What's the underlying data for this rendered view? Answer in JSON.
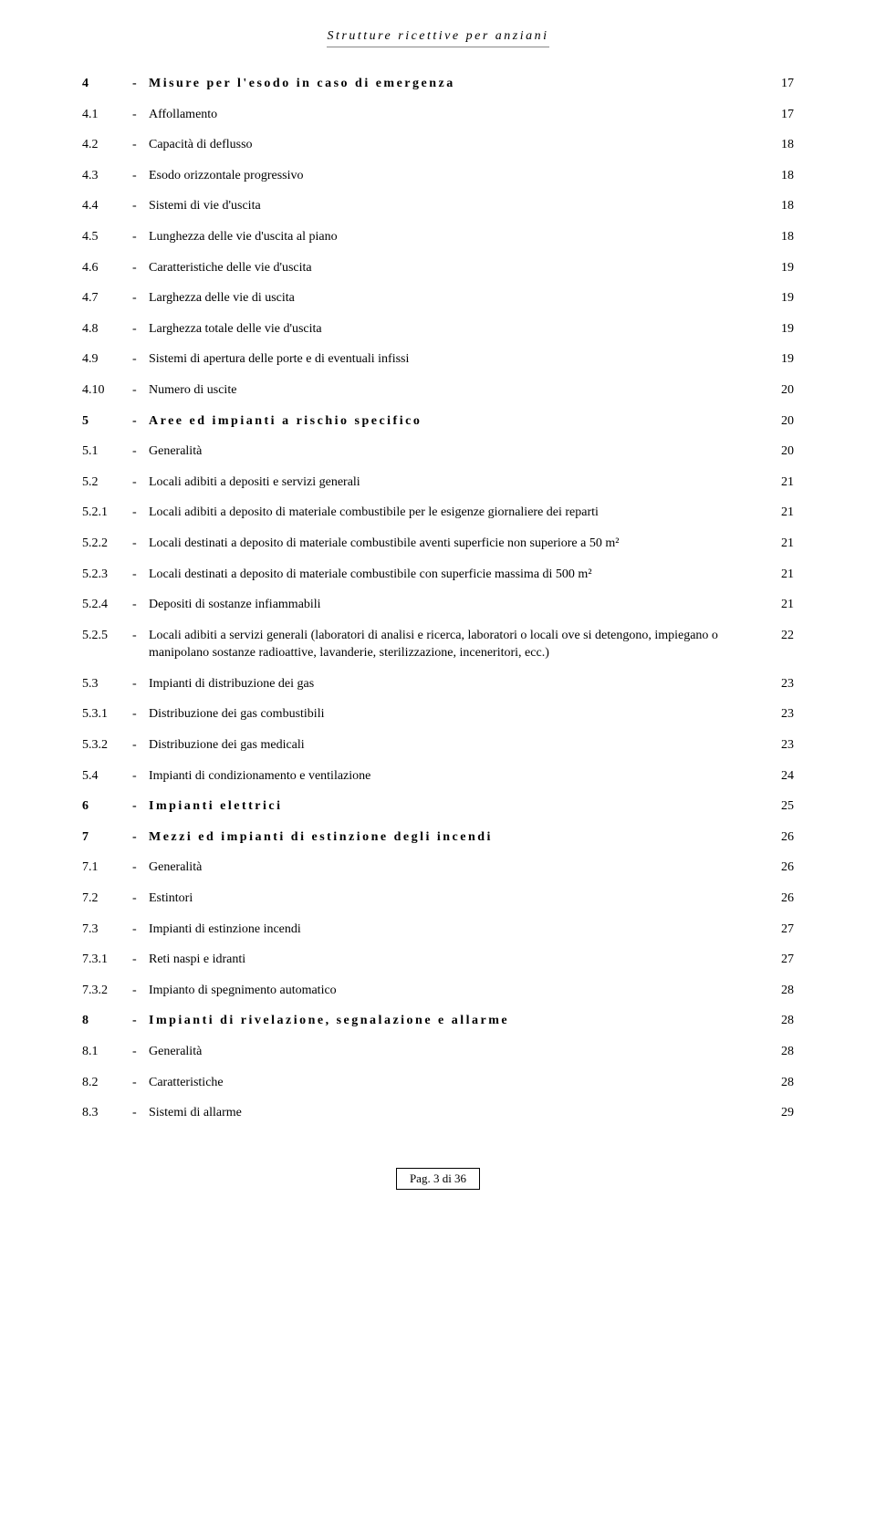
{
  "header": {
    "title": "Strutture ricettive per anziani"
  },
  "toc": [
    {
      "num": "4",
      "title": "Misure per l'esodo in caso di emergenza",
      "page": "17",
      "level": 1
    },
    {
      "num": "4.1",
      "title": "Affollamento",
      "page": "17",
      "level": 2
    },
    {
      "num": "4.2",
      "title": "Capacità di deflusso",
      "page": "18",
      "level": 2
    },
    {
      "num": "4.3",
      "title": "Esodo orizzontale progressivo",
      "page": "18",
      "level": 2
    },
    {
      "num": "4.4",
      "title": "Sistemi di vie d'uscita",
      "page": "18",
      "level": 2
    },
    {
      "num": "4.5",
      "title": "Lunghezza delle vie d'uscita al piano",
      "page": "18",
      "level": 2
    },
    {
      "num": "4.6",
      "title": "Caratteristiche delle vie d'uscita",
      "page": "19",
      "level": 2
    },
    {
      "num": "4.7",
      "title": "Larghezza delle vie di uscita",
      "page": "19",
      "level": 2
    },
    {
      "num": "4.8",
      "title": "Larghezza totale delle vie d'uscita",
      "page": "19",
      "level": 2
    },
    {
      "num": "4.9",
      "title": "Sistemi di apertura delle porte e di eventuali infissi",
      "page": "19",
      "level": 2
    },
    {
      "num": "4.10",
      "title": "Numero di uscite",
      "page": "20",
      "level": 2
    },
    {
      "num": "5",
      "title": "Aree ed impianti a rischio specifico",
      "page": "20",
      "level": 1
    },
    {
      "num": "5.1",
      "title": "Generalità",
      "page": "20",
      "level": 2
    },
    {
      "num": "5.2",
      "title": "Locali adibiti a depositi e servizi generali",
      "page": "21",
      "level": 2
    },
    {
      "num": "5.2.1",
      "title": "Locali adibiti a deposito di materiale combustibile per le esigenze giornaliere dei reparti",
      "page": "21",
      "level": 2
    },
    {
      "num": "5.2.2",
      "title": "Locali destinati a deposito di materiale combustibile aventi superficie non superiore a 50 m²",
      "page": "21",
      "level": 2
    },
    {
      "num": "5.2.3",
      "title": "Locali destinati a deposito di materiale combustibile con superficie massima di 500 m²",
      "page": "21",
      "level": 2
    },
    {
      "num": "5.2.4",
      "title": "Depositi di sostanze infiammabili",
      "page": "21",
      "level": 2
    },
    {
      "num": "5.2.5",
      "title": "Locali adibiti a servizi generali (laboratori di analisi e ricerca, laboratori o locali ove si detengono, impiegano o manipolano sostanze radioattive, lavanderie, sterilizzazione, inceneritori, ecc.)",
      "page": "22",
      "level": 2
    },
    {
      "num": "5.3",
      "title": "Impianti di distribuzione dei gas",
      "page": "23",
      "level": 2
    },
    {
      "num": "5.3.1",
      "title": "Distribuzione dei gas combustibili",
      "page": "23",
      "level": 2
    },
    {
      "num": "5.3.2",
      "title": "Distribuzione dei gas medicali",
      "page": "23",
      "level": 2
    },
    {
      "num": "5.4",
      "title": "Impianti di condizionamento e ventilazione",
      "page": "24",
      "level": 2
    },
    {
      "num": "6",
      "title": "Impianti elettrici",
      "page": "25",
      "level": 1
    },
    {
      "num": "7",
      "title": "Mezzi ed impianti di estinzione degli incendi",
      "page": "26",
      "level": 1
    },
    {
      "num": "7.1",
      "title": "Generalità",
      "page": "26",
      "level": 2
    },
    {
      "num": "7.2",
      "title": "Estintori",
      "page": "26",
      "level": 2
    },
    {
      "num": "7.3",
      "title": "Impianti di estinzione incendi",
      "page": "27",
      "level": 2
    },
    {
      "num": "7.3.1",
      "title": "Reti naspi e idranti",
      "page": "27",
      "level": 2
    },
    {
      "num": "7.3.2",
      "title": "Impianto di spegnimento automatico",
      "page": "28",
      "level": 2
    },
    {
      "num": "8",
      "title": "Impianti di rivelazione, segnalazione e allarme",
      "page": "28",
      "level": 1
    },
    {
      "num": "8.1",
      "title": "Generalità",
      "page": "28",
      "level": 2
    },
    {
      "num": "8.2",
      "title": "Caratteristiche",
      "page": "28",
      "level": 2
    },
    {
      "num": "8.3",
      "title": "Sistemi di allarme",
      "page": "29",
      "level": 2
    }
  ],
  "footer": {
    "text": "Pag.  3 di 36"
  }
}
